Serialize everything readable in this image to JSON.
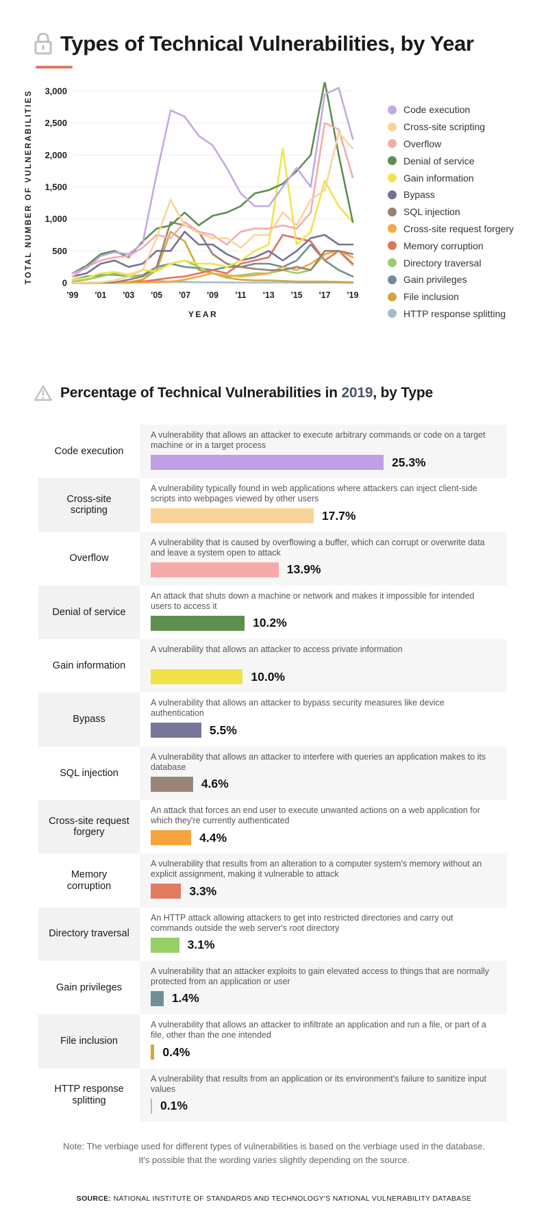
{
  "header": {
    "title": "Types of Technical Vulnerabilities, by Year",
    "icon": "lock-icon"
  },
  "chart_data": [
    {
      "type": "line",
      "title": "Types of Technical Vulnerabilities, by Year",
      "xlabel": "YEAR",
      "ylabel": "TOTAL NUMBER OF VULNERABILITIES",
      "ylim": [
        0,
        3000
      ],
      "yticks": [
        "0",
        "500",
        "1,000",
        "1,500",
        "2,000",
        "2,500",
        "3,000"
      ],
      "xtick_labels": [
        "'99",
        "'01",
        "'03",
        "'05",
        "'07",
        "'09",
        "'11",
        "'13",
        "'15",
        "'17",
        "'19"
      ],
      "x": [
        1999,
        2000,
        2001,
        2002,
        2003,
        2004,
        2005,
        2006,
        2007,
        2008,
        2009,
        2010,
        2011,
        2012,
        2013,
        2014,
        2015,
        2016,
        2017,
        2018,
        2019
      ],
      "legend_position": "right",
      "series": [
        {
          "name": "Code execution",
          "color": "#c3a8e6",
          "values": [
            150,
            230,
            420,
            480,
            450,
            620,
            1700,
            2700,
            2600,
            2300,
            2150,
            1800,
            1400,
            1200,
            1200,
            1500,
            1800,
            1500,
            2950,
            3050,
            2250
          ]
        },
        {
          "name": "Cross-site scripting",
          "color": "#f9d49a",
          "values": [
            3,
            5,
            10,
            40,
            100,
            200,
            700,
            1300,
            900,
            780,
            700,
            700,
            550,
            750,
            750,
            1100,
            900,
            1300,
            1450,
            2350,
            2100
          ]
        },
        {
          "name": "Overflow",
          "color": "#f4acaa",
          "values": [
            100,
            250,
            350,
            400,
            420,
            550,
            750,
            700,
            950,
            800,
            750,
            600,
            800,
            850,
            850,
            900,
            850,
            1100,
            2500,
            2400,
            1650
          ]
        },
        {
          "name": "Denial of service",
          "color": "#5d8d52",
          "values": [
            150,
            270,
            450,
            500,
            400,
            650,
            850,
            900,
            1100,
            900,
            1050,
            1100,
            1200,
            1400,
            1450,
            1550,
            1750,
            2000,
            3150,
            2000,
            950
          ]
        },
        {
          "name": "Gain information",
          "color": "#f0e44a",
          "values": [
            50,
            80,
            150,
            170,
            130,
            200,
            180,
            300,
            350,
            300,
            300,
            250,
            350,
            500,
            600,
            2100,
            600,
            800,
            1600,
            1200,
            950
          ]
        },
        {
          "name": "Bypass",
          "color": "#727299",
          "values": [
            100,
            150,
            300,
            350,
            250,
            300,
            500,
            500,
            800,
            600,
            600,
            450,
            350,
            400,
            500,
            350,
            500,
            700,
            750,
            600,
            600
          ]
        },
        {
          "name": "SQL injection",
          "color": "#958473",
          "values": [
            0,
            0,
            5,
            10,
            50,
            100,
            250,
            950,
            900,
            800,
            450,
            300,
            250,
            220,
            200,
            200,
            250,
            200,
            500,
            500,
            450
          ]
        },
        {
          "name": "Cross-site request forgery",
          "color": "#f4a843",
          "values": [
            0,
            0,
            0,
            0,
            0,
            5,
            10,
            20,
            50,
            100,
            150,
            120,
            100,
            120,
            150,
            250,
            200,
            300,
            450,
            500,
            400
          ]
        },
        {
          "name": "Memory corruption",
          "color": "#e2735e",
          "values": [
            0,
            0,
            5,
            5,
            10,
            20,
            50,
            80,
            100,
            150,
            200,
            150,
            300,
            350,
            400,
            750,
            700,
            650,
            350,
            500,
            300
          ]
        },
        {
          "name": "Directory traversal",
          "color": "#98cf66",
          "values": [
            20,
            50,
            100,
            150,
            100,
            100,
            200,
            300,
            350,
            250,
            150,
            100,
            120,
            150,
            150,
            200,
            150,
            200,
            450,
            500,
            280
          ]
        },
        {
          "name": "Gain privileges",
          "color": "#6f8f94",
          "values": [
            50,
            100,
            120,
            130,
            100,
            120,
            250,
            300,
            250,
            230,
            200,
            250,
            250,
            300,
            300,
            250,
            350,
            600,
            350,
            200,
            100
          ]
        },
        {
          "name": "File inclusion",
          "color": "#d1a73e",
          "values": [
            0,
            0,
            0,
            5,
            10,
            50,
            200,
            800,
            650,
            200,
            150,
            80,
            50,
            40,
            40,
            30,
            20,
            20,
            20,
            15,
            10
          ]
        },
        {
          "name": "HTTP response splitting",
          "color": "#a5bccb",
          "values": [
            0,
            0,
            0,
            0,
            5,
            20,
            30,
            20,
            15,
            10,
            10,
            8,
            5,
            5,
            5,
            5,
            3,
            3,
            3,
            3,
            2
          ]
        }
      ]
    },
    {
      "type": "bar",
      "title": "Percentage of Technical Vulnerabilities in 2019, by Type",
      "unit": "%",
      "categories": [
        "Code execution",
        "Cross-site scripting",
        "Overflow",
        "Denial of service",
        "Gain information",
        "Bypass",
        "SQL injection",
        "Cross-site request forgery",
        "Memory corruption",
        "Directory traversal",
        "Gain privileges",
        "File inclusion",
        "HTTP response splitting"
      ],
      "values": [
        25.3,
        17.7,
        13.9,
        10.2,
        10.0,
        5.5,
        4.6,
        4.4,
        3.3,
        3.1,
        1.4,
        0.4,
        0.1
      ]
    }
  ],
  "section2": {
    "title_prefix": "Percentage of Technical Vulnerabilities in ",
    "year": "2019",
    "title_suffix": ", by Type",
    "icon": "warning-icon"
  },
  "table": [
    {
      "name": "Code execution",
      "desc": "A vulnerability that allows an attacker to execute arbitrary commands or code on a target machine or in a target process",
      "pct": "25.3%",
      "value": 25.3,
      "color": "#c19fe6"
    },
    {
      "name": "Cross-site scripting",
      "desc": "A vulnerability typically found in web applications where attackers can inject client-side scripts into webpages viewed by other users",
      "pct": "17.7%",
      "value": 17.7,
      "color": "#f9d49a"
    },
    {
      "name": "Overflow",
      "desc": "A vulnerability that is caused by overflowing a buffer, which can corrupt or overwrite data and leave a system open to attack",
      "pct": "13.9%",
      "value": 13.9,
      "color": "#f6aaa8"
    },
    {
      "name": "Denial of service",
      "desc": "An attack that shuts down a machine or network and makes it impossible for intended users to access it",
      "pct": "10.2%",
      "value": 10.2,
      "color": "#5e8f4f"
    },
    {
      "name": "Gain information",
      "desc": "A vulnerability that allows an attacker to access private information",
      "pct": "10.0%",
      "value": 10.0,
      "color": "#f1e24a"
    },
    {
      "name": "Bypass",
      "desc": "A vulnerability that allows an attacker to bypass security measures like device authentication",
      "pct": "5.5%",
      "value": 5.5,
      "color": "#757699"
    },
    {
      "name": "SQL injection",
      "desc": "A vulnerability that allows an attacker to interfere with queries an application makes to its database",
      "pct": "4.6%",
      "value": 4.6,
      "color": "#9a8576"
    },
    {
      "name": "Cross-site request forgery",
      "desc": "An attack that forces an end user to execute unwanted actions on a web application for which they're currently authenticated",
      "pct": "4.4%",
      "value": 4.4,
      "color": "#f6a53c"
    },
    {
      "name": "Memory corruption",
      "desc": "A vulnerability that results from an alteration to a computer system's memory without an explicit assignment, making it vulnerable to attack",
      "pct": "3.3%",
      "value": 3.3,
      "color": "#e27a60"
    },
    {
      "name": "Directory traversal",
      "desc": "An HTTP attack allowing attackers to get into restricted directories and carry out commands outside the web server's root directory",
      "pct": "3.1%",
      "value": 3.1,
      "color": "#97cf65"
    },
    {
      "name": "Gain privileges",
      "desc": "A vulnerability that an attacker exploits to gain elevated access to things that are normally protected from an application or user",
      "pct": "1.4%",
      "value": 1.4,
      "color": "#6f8f96"
    },
    {
      "name": "File inclusion",
      "desc": "A vulnerability that allows an attacker to infiltrate an application and run a file, or part of a file, other than the one intended",
      "pct": "0.4%",
      "value": 0.4,
      "color": "#d4a835"
    },
    {
      "name": "HTTP response splitting",
      "desc": "A vulnerability that results from an application or its environment's failure to sanitize input values",
      "pct": "0.1%",
      "value": 0.1,
      "color": "#a9bdcc"
    }
  ],
  "footer": {
    "note_line1": "Note: The verbiage used for different types of vulnerabilities is based on the verbiage used in the database.",
    "note_line2": "It's possible that the wording varies slightly depending on the source.",
    "source_label": "SOURCE:",
    "source_text": " NATIONAL INSTITUTE OF STANDARDS AND TECHNOLOGY'S NATIONAL VULNERABILITY DATABASE"
  }
}
